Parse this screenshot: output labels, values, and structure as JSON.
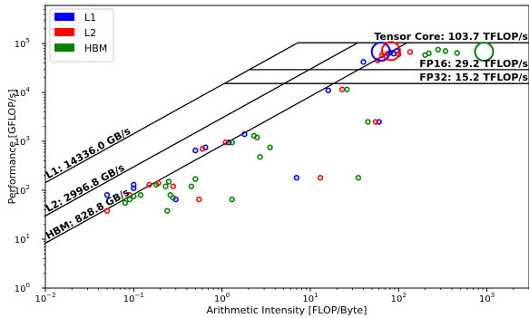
{
  "chart_data": {
    "type": "scatter",
    "title": "",
    "xlabel": "Arithmetic Intensity [FLOP/Byte]",
    "ylabel": "Performance [GFLOP/s]",
    "xscale": "log",
    "yscale": "log",
    "xlim": [
      0.01,
      3000
    ],
    "ylim": [
      1,
      600000
    ],
    "x_ticks": [
      {
        "value": 0.01,
        "base": "10",
        "exp": "−2"
      },
      {
        "value": 0.1,
        "base": "10",
        "exp": "−1"
      },
      {
        "value": 1,
        "base": "10",
        "exp": "0"
      },
      {
        "value": 10,
        "base": "10",
        "exp": "1"
      },
      {
        "value": 100,
        "base": "10",
        "exp": "2"
      },
      {
        "value": 1000,
        "base": "10",
        "exp": "3"
      }
    ],
    "y_ticks": [
      {
        "value": 1,
        "base": "10",
        "exp": "0"
      },
      {
        "value": 10,
        "base": "10",
        "exp": "1"
      },
      {
        "value": 100,
        "base": "10",
        "exp": "2"
      },
      {
        "value": 1000,
        "base": "10",
        "exp": "3"
      },
      {
        "value": 10000,
        "base": "10",
        "exp": "4"
      },
      {
        "value": 100000,
        "base": "10",
        "exp": "5"
      }
    ],
    "legend": {
      "position": "top-left",
      "entries": [
        {
          "label": "L1",
          "color": "#0000ff"
        },
        {
          "label": "L2",
          "color": "#ff0000"
        },
        {
          "label": "HBM",
          "color": "#008000"
        }
      ]
    },
    "compute_roofs": [
      {
        "label": "Tensor Core: 103.7 TFLOP/s",
        "gflops": 103700
      },
      {
        "label": "FP16: 29.2 TFLOP/s",
        "gflops": 29200
      },
      {
        "label": "FP32: 15.2 TFLOP/s",
        "gflops": 15200
      }
    ],
    "bandwidth_roofs": [
      {
        "label": "L1: 14336.0 GB/s",
        "gbps": 14336.0
      },
      {
        "label": "L2: 2996.8 GB/s",
        "gbps": 2996.8
      },
      {
        "label": "HBM: 828.8 GB/s",
        "gbps": 828.8
      }
    ],
    "series": [
      {
        "name": "L1",
        "color": "#0000ff",
        "points": [
          [
            0.05,
            80
          ],
          [
            0.1,
            110
          ],
          [
            0.1,
            130
          ],
          [
            0.3,
            65
          ],
          [
            0.5,
            650
          ],
          [
            0.65,
            750
          ],
          [
            1.2,
            950
          ],
          [
            1.8,
            1400
          ],
          [
            7,
            180
          ],
          [
            16,
            11000
          ],
          [
            40,
            42000
          ],
          [
            60,
            2500
          ],
          [
            80,
            65000
          ],
          [
            88,
            62000
          ],
          [
            95,
            70000
          ]
        ]
      },
      {
        "name": "L2",
        "color": "#ff0000",
        "points": [
          [
            0.05,
            38
          ],
          [
            0.09,
            80
          ],
          [
            0.15,
            130
          ],
          [
            0.19,
            140
          ],
          [
            0.28,
            120
          ],
          [
            0.55,
            65
          ],
          [
            0.6,
            700
          ],
          [
            1.1,
            950
          ],
          [
            13,
            180
          ],
          [
            23,
            11500
          ],
          [
            55,
            2500
          ],
          [
            58,
            45000
          ],
          [
            65,
            58000
          ],
          [
            75,
            62000
          ],
          [
            100,
            60000
          ],
          [
            135,
            67000
          ]
        ]
      },
      {
        "name": "HBM",
        "color": "#008000",
        "points": [
          [
            0.08,
            55
          ],
          [
            0.09,
            65
          ],
          [
            0.1,
            75
          ],
          [
            0.12,
            80
          ],
          [
            0.18,
            130
          ],
          [
            0.23,
            120
          ],
          [
            0.24,
            38
          ],
          [
            0.25,
            150
          ],
          [
            0.26,
            80
          ],
          [
            0.28,
            70
          ],
          [
            0.5,
            170
          ],
          [
            0.45,
            120
          ],
          [
            1.3,
            65
          ],
          [
            1.3,
            950
          ],
          [
            2.3,
            1300
          ],
          [
            2.5,
            1200
          ],
          [
            2.7,
            480
          ],
          [
            3.5,
            750
          ],
          [
            26,
            11500
          ],
          [
            35,
            180
          ],
          [
            45,
            2500
          ],
          [
            200,
            58000
          ],
          [
            220,
            63000
          ],
          [
            280,
            75000
          ],
          [
            340,
            70000
          ],
          [
            460,
            64000
          ]
        ]
      }
    ],
    "highlights": [
      {
        "series": "HBM",
        "x": 930,
        "y": 68000
      },
      {
        "series": "L1",
        "x": 63,
        "y": 68000
      },
      {
        "series": "L2",
        "x": 82,
        "y": 70000
      }
    ]
  }
}
